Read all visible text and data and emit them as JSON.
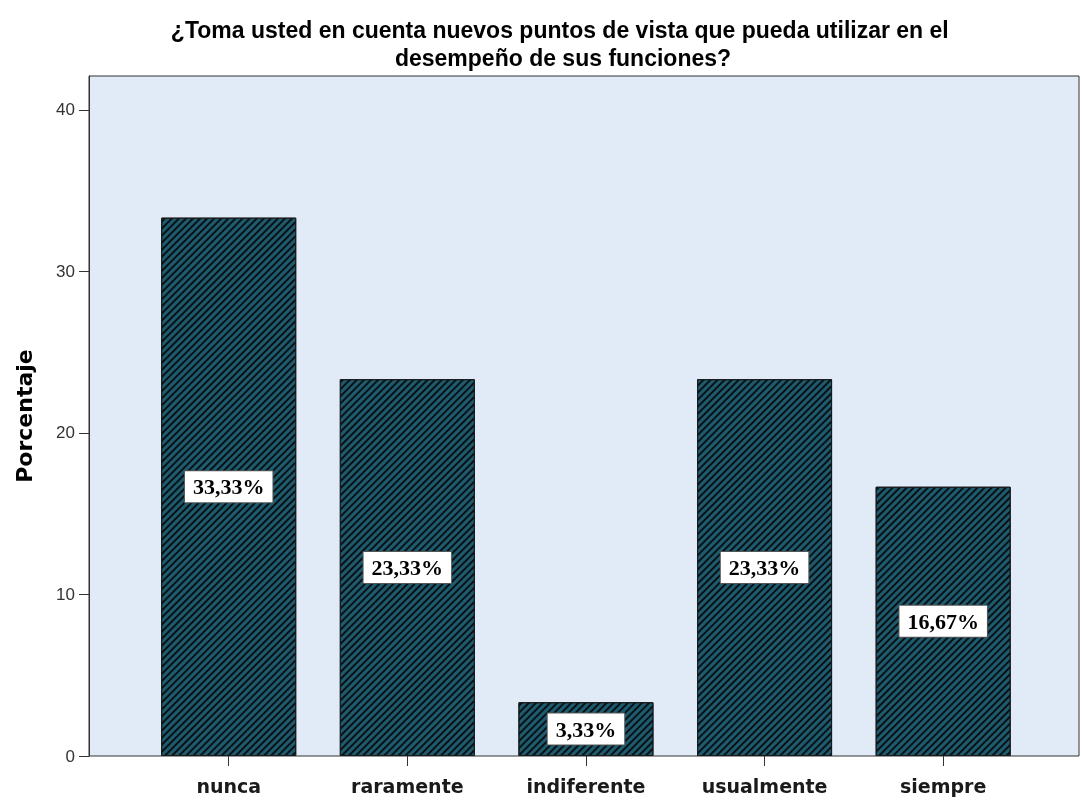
{
  "chart_data": {
    "type": "bar",
    "title": "¿Toma usted en cuenta nuevos puntos de vista que pueda utilizar en el desempeño de sus funciones?",
    "ylabel": "Porcentaje",
    "categories": [
      "nunca",
      "raramente",
      "indiferente",
      "usualmente",
      "siempre"
    ],
    "values": [
      33.33,
      23.33,
      3.33,
      23.33,
      16.67
    ],
    "value_labels": [
      "33,33%",
      "23,33%",
      "3,33%",
      "23,33%",
      "16,67%"
    ],
    "color": "#1f5b6e",
    "ylim": [
      0,
      42.1
    ],
    "yticks": [
      0,
      10,
      20,
      30,
      40
    ]
  }
}
